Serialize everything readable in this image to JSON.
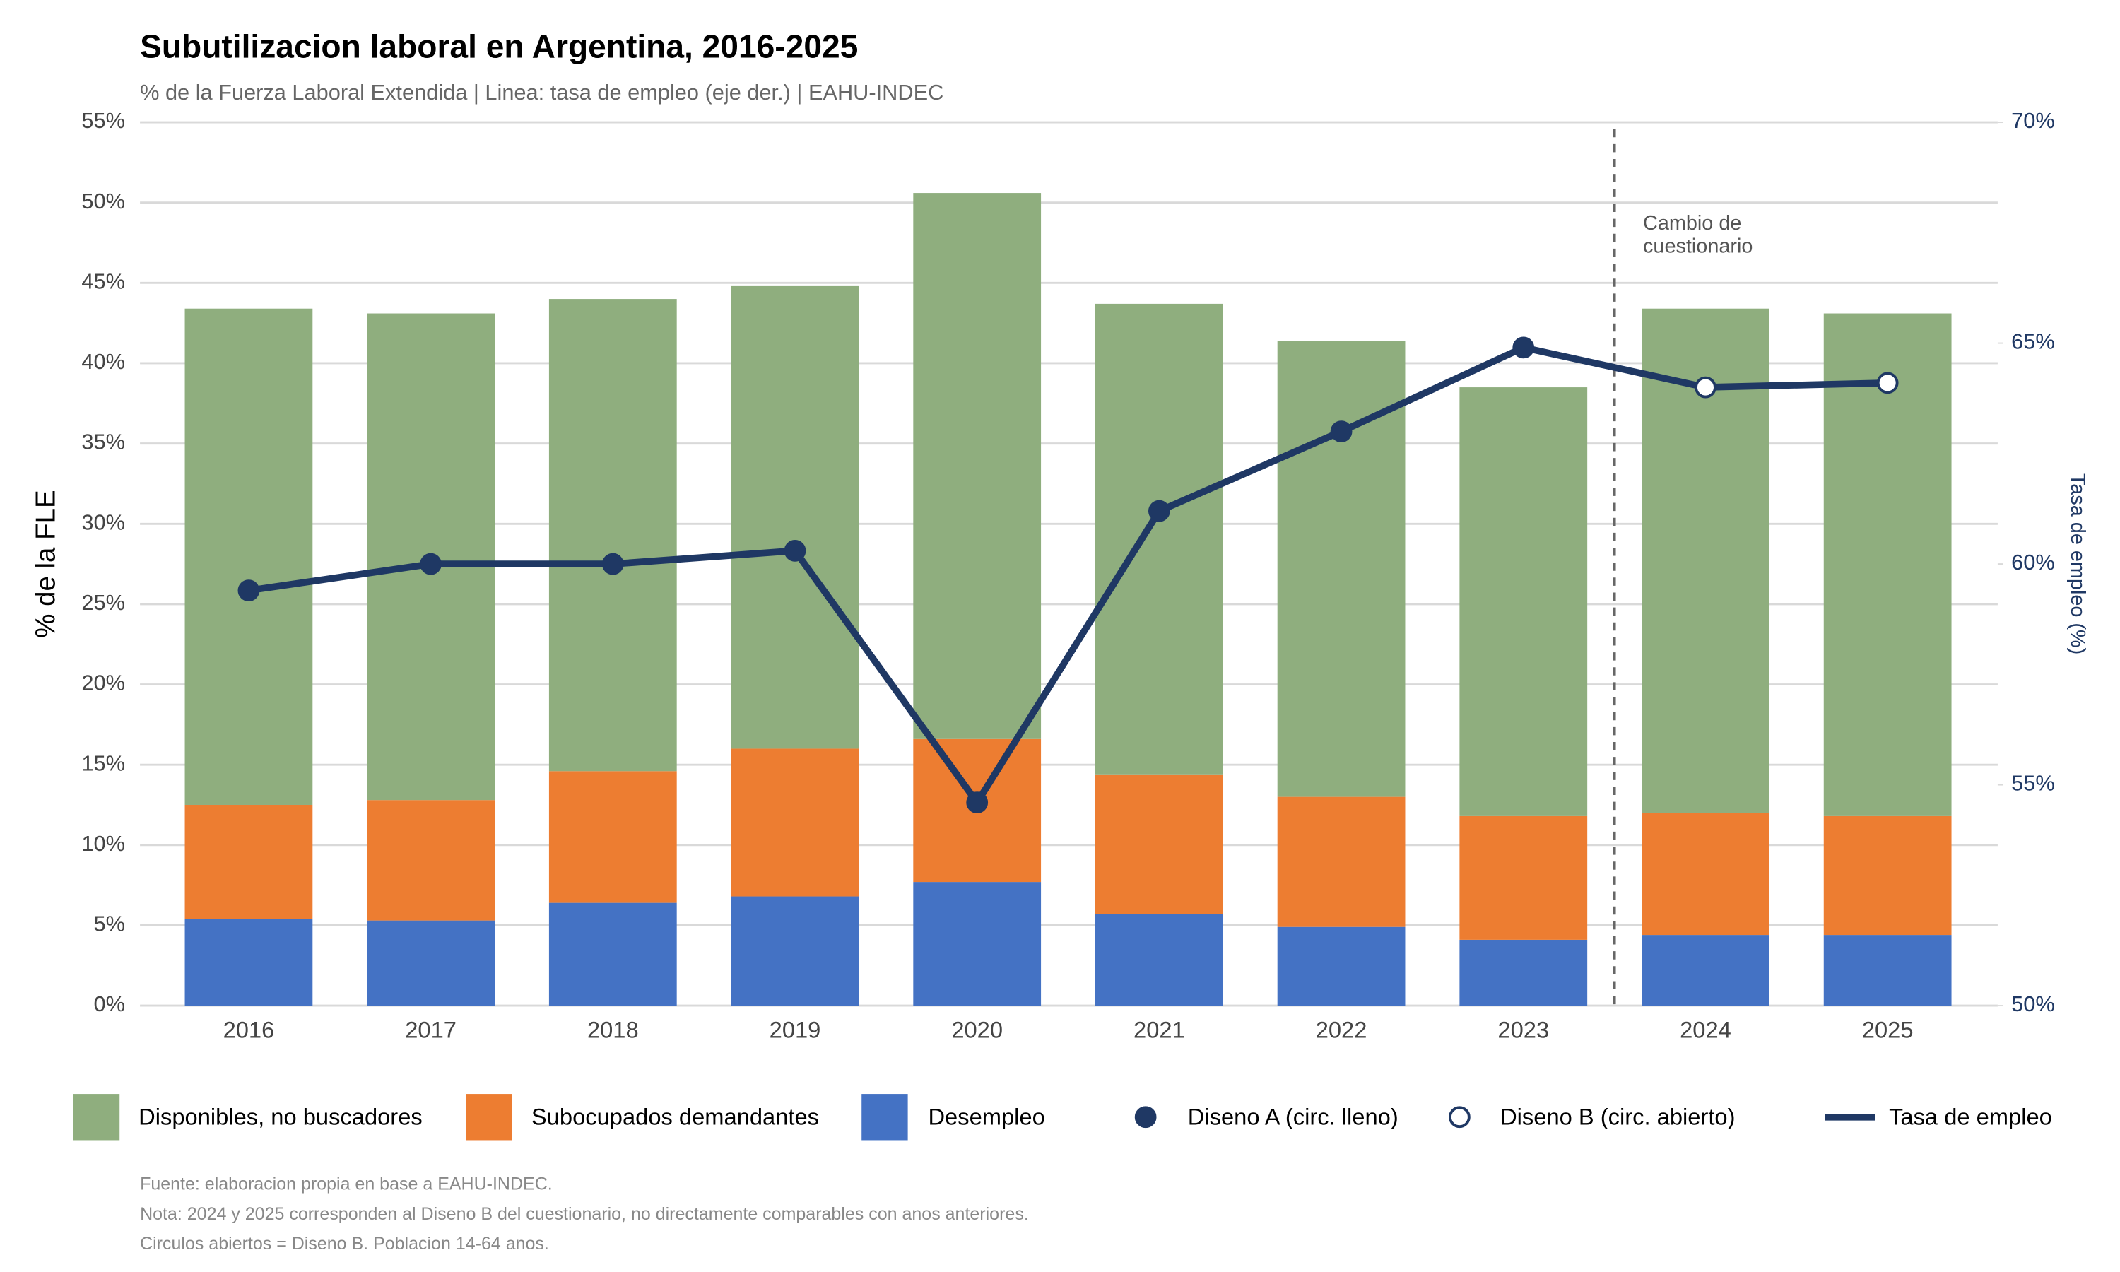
{
  "chart_data": {
    "type": "stacked-bar-line",
    "title": "Subutilizacion laboral en Argentina, 2016-2025",
    "subtitle": "% de la Fuerza Laboral Extendida | Linea: tasa de empleo (eje der.) | EAHU-INDEC",
    "y_label": "% de la FLE",
    "y2_label": "Tasa de empleo (%)",
    "annotation": [
      "Cambio de",
      "cuestionario"
    ],
    "categories": [
      "2016",
      "2017",
      "2018",
      "2019",
      "2020",
      "2021",
      "2022",
      "2023",
      "2024",
      "2025"
    ],
    "series": [
      {
        "name": "Disponibles, no buscadores",
        "color": "#8FAE7E",
        "values": [
          30.9,
          30.3,
          29.4,
          28.8,
          34.0,
          29.3,
          28.4,
          26.7,
          31.4,
          31.3
        ]
      },
      {
        "name": "Subocupados demandantes",
        "color": "#ED7D31",
        "values": [
          7.1,
          7.5,
          8.2,
          9.2,
          8.9,
          8.7,
          8.1,
          7.7,
          7.6,
          7.4
        ]
      },
      {
        "name": "Desempleo",
        "color": "#4472C4",
        "values": [
          5.4,
          5.3,
          6.4,
          6.8,
          7.7,
          5.7,
          4.9,
          4.1,
          4.4,
          4.4
        ]
      },
      {
        "name": "Diseno A (circ. lleno)",
        "color": "#1F3864",
        "axis": "y2",
        "marker": "filled",
        "values": [
          59.4,
          60.0,
          60.0,
          60.3,
          54.6,
          61.2,
          63.0,
          64.9,
          null,
          null
        ]
      },
      {
        "name": "Diseno B (circ. abierto)",
        "color": "#1F3864",
        "axis": "y2",
        "marker": "open",
        "values": [
          null,
          null,
          null,
          null,
          null,
          null,
          null,
          null,
          64.0,
          64.1
        ]
      },
      {
        "name": "Tasa de empleo",
        "color": "#1F3864",
        "axis": "y2",
        "marker": "line",
        "values": [
          59.4,
          60.0,
          60.0,
          60.3,
          54.6,
          61.2,
          63.0,
          64.9,
          64.0,
          64.1
        ]
      }
    ],
    "ylim": [
      0,
      55
    ],
    "yticks": [
      {
        "value": 0,
        "label": "0%"
      },
      {
        "value": 5,
        "label": "5%"
      },
      {
        "value": 10,
        "label": "10%"
      },
      {
        "value": 15,
        "label": "15%"
      },
      {
        "value": 20,
        "label": "20%"
      },
      {
        "value": 25,
        "label": "25%"
      },
      {
        "value": 30,
        "label": "30%"
      },
      {
        "value": 35,
        "label": "35%"
      },
      {
        "value": 40,
        "label": "40%"
      },
      {
        "value": 45,
        "label": "45%"
      },
      {
        "value": 50,
        "label": "50%"
      },
      {
        "value": 55,
        "label": "55%"
      }
    ],
    "y2lim": [
      50,
      70
    ],
    "y2ticks": [
      {
        "value": 50,
        "label": "50%"
      },
      {
        "value": 55,
        "label": "55%"
      },
      {
        "value": 60,
        "label": "60%"
      },
      {
        "value": 65,
        "label": "65%"
      },
      {
        "value": 70,
        "label": "70%"
      }
    ],
    "grid": true,
    "notes": [
      "Fuente: elaboracion propia en base a EAHU-INDEC.",
      "Nota: 2024 y 2025 corresponden al Diseno B del cuestionario, no directamente comparables con anos anteriores.",
      "Circulos abiertos = Diseno B. Poblacion 14-64 anos."
    ]
  }
}
